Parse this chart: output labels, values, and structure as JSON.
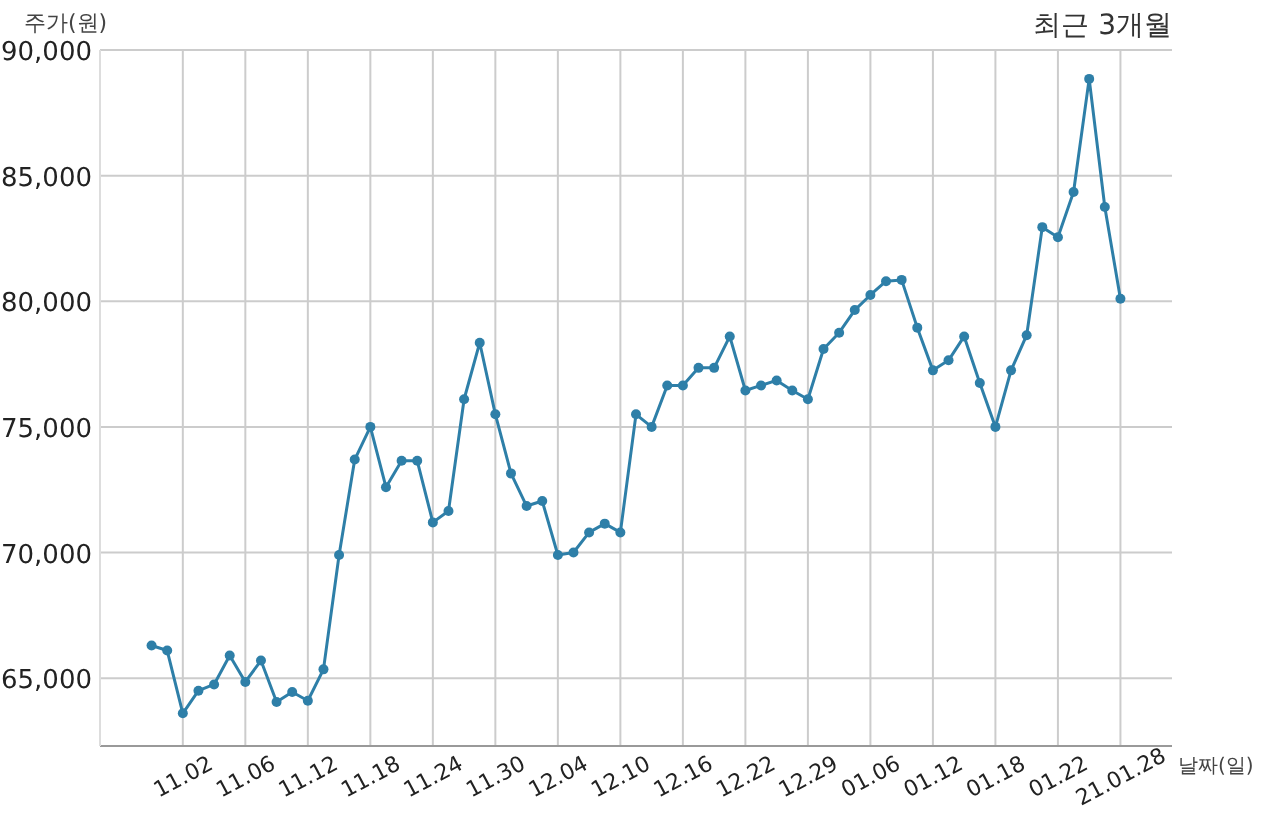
{
  "chart_data": {
    "type": "line",
    "title": "최근 3개월",
    "xlabel": "날짜(일)",
    "ylabel": "주가(원)",
    "categories": [
      null,
      null,
      "11.02",
      null,
      null,
      null,
      "11.06",
      null,
      null,
      null,
      "11.12",
      null,
      null,
      null,
      "11.18",
      null,
      null,
      null,
      "11.24",
      null,
      null,
      null,
      "11.30",
      null,
      null,
      null,
      "12.04",
      null,
      null,
      null,
      "12.10",
      null,
      null,
      null,
      "12.16",
      null,
      null,
      null,
      "12.22",
      null,
      null,
      null,
      "12.29",
      null,
      null,
      null,
      "01.06",
      null,
      null,
      null,
      "01.12",
      null,
      null,
      null,
      "01.18",
      null,
      null,
      null,
      "01.22",
      null,
      null,
      null,
      "21.01.28"
    ],
    "series": [
      {
        "color": "#2e7fa8",
        "values": [
          66300,
          66100,
          63600,
          64500,
          64750,
          65900,
          64850,
          65700,
          64050,
          64450,
          64100,
          65350,
          69900,
          73700,
          75000,
          72600,
          73650,
          73650,
          71200,
          71650,
          76100,
          78350,
          75500,
          73150,
          71850,
          72050,
          69900,
          70000,
          70800,
          71150,
          70800,
          75500,
          75000,
          76650,
          76650,
          77350,
          77350,
          78600,
          76450,
          76650,
          76850,
          76450,
          76100,
          78100,
          78750,
          79650,
          80250,
          80800,
          80850,
          78950,
          77250,
          77650,
          78600,
          76750,
          75000,
          77250,
          78650,
          82950,
          82550,
          84350,
          88850,
          83750,
          80100
        ]
      }
    ],
    "ylim": [
      62300,
      90000
    ],
    "yticks": [
      {
        "value": 65000,
        "label": "65,000"
      },
      {
        "value": 70000,
        "label": "70,000"
      },
      {
        "value": 75000,
        "label": "75,000"
      },
      {
        "value": 80000,
        "label": "80,000"
      },
      {
        "value": 85000,
        "label": "85,000"
      },
      {
        "value": 90000,
        "label": "90,000"
      }
    ],
    "grid": true,
    "marker": "circle",
    "line_style": "solid"
  }
}
